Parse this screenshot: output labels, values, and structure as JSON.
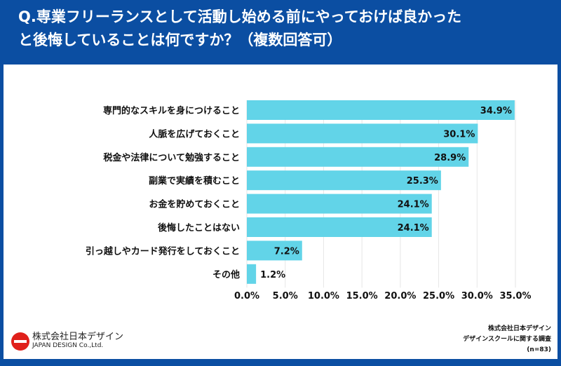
{
  "title_line1": "Q.専業フリーランスとして活動し始める前にやっておけば良かった",
  "title_line2": "と後悔していることは何ですか？（複数回答可）",
  "colors": {
    "frame": "#0b4ea2",
    "bar": "#62d4e8",
    "logo": "#e0201b"
  },
  "chart_data": {
    "type": "bar",
    "orientation": "horizontal",
    "categories": [
      "専門的なスキルを身につけること",
      "人脈を広げておくこと",
      "税金や法律について勉強すること",
      "副業で実績を積むこと",
      "お金を貯めておくこと",
      "後悔したことはない",
      "引っ越しやカード発行をしておくこと",
      "その他"
    ],
    "values": [
      34.9,
      30.1,
      28.9,
      25.3,
      24.1,
      24.1,
      7.2,
      1.2
    ],
    "data_labels": [
      "34.9%",
      "30.1%",
      "28.9%",
      "25.3%",
      "24.1%",
      "24.1%",
      "7.2%",
      "1.2%"
    ],
    "xlim": [
      0,
      35
    ],
    "x_ticks": [
      "0.0%",
      "5.0%",
      "10.0%",
      "15.0%",
      "20.0%",
      "25.0%",
      "30.0%",
      "35.0%"
    ],
    "grid": true
  },
  "source": {
    "line1": "株式会社日本デザイン",
    "line2": "デザインスクールに関する調査",
    "line3": "(n=83)"
  },
  "logo": {
    "jp": "株式会社日本デザイン",
    "en": "JAPAN DESIGN Co.,Ltd."
  }
}
